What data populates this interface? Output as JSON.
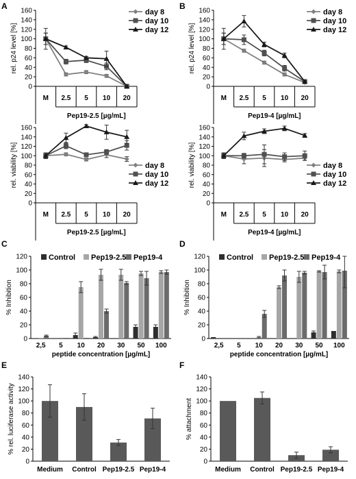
{
  "chart_data": [
    {
      "panel": "A",
      "type": "line",
      "ylabel": "rel. p24 level [%]",
      "ylim": [
        0,
        160
      ],
      "yticks": [
        0,
        20,
        40,
        60,
        80,
        100,
        120,
        140,
        160
      ],
      "categories": [
        "M",
        "2.5",
        "5",
        "10",
        "20"
      ],
      "xlabel": "Pep19-2.5 [µg/mL]",
      "series": [
        {
          "name": "day 8",
          "values": [
            100,
            25,
            30,
            22,
            0
          ],
          "errors": [
            12,
            3,
            3,
            3,
            0
          ],
          "marker": "diamond",
          "color": "#808080"
        },
        {
          "name": "day 10",
          "values": [
            100,
            52,
            55,
            42,
            0
          ],
          "errors": [
            12,
            5,
            5,
            7,
            0
          ],
          "marker": "square",
          "color": "#505050"
        },
        {
          "name": "day 12",
          "values": [
            100,
            82,
            60,
            58,
            0
          ],
          "errors": [
            22,
            3,
            3,
            16,
            0
          ],
          "marker": "triangle",
          "color": "#1a1a1a"
        }
      ],
      "legend": "top-right"
    },
    {
      "panel": "B",
      "type": "line",
      "ylabel": "rel. p24 level [%]",
      "ylim": [
        0,
        160
      ],
      "yticks": [
        0,
        20,
        40,
        60,
        80,
        100,
        120,
        140,
        160
      ],
      "categories": [
        "M",
        "2.5",
        "5",
        "10",
        "20"
      ],
      "xlabel": "Pep19-4 [µg/mL]",
      "series": [
        {
          "name": "day 8",
          "values": [
            100,
            75,
            50,
            25,
            8
          ],
          "errors": [
            12,
            3,
            3,
            3,
            2
          ],
          "marker": "diamond",
          "color": "#808080"
        },
        {
          "name": "day 10",
          "values": [
            100,
            98,
            70,
            38,
            10
          ],
          "errors": [
            12,
            10,
            6,
            6,
            2
          ],
          "marker": "square",
          "color": "#505050"
        },
        {
          "name": "day 12",
          "values": [
            100,
            137,
            88,
            65,
            10
          ],
          "errors": [
            22,
            12,
            5,
            5,
            2
          ],
          "marker": "triangle",
          "color": "#1a1a1a"
        }
      ],
      "legend": "top-right"
    },
    {
      "panel": "A2",
      "type": "line",
      "ylabel": "rel. viability [%]",
      "ylim": [
        0,
        160
      ],
      "yticks": [
        0,
        20,
        40,
        60,
        80,
        100,
        120,
        140,
        160
      ],
      "categories": [
        "M",
        "2.5",
        "5",
        "10",
        "20"
      ],
      "xlabel": "Pep19-2.5 [µg/mL]",
      "series": [
        {
          "name": "day 8",
          "values": [
            100,
            103,
            92,
            102,
            93
          ],
          "errors": [
            6,
            3,
            3,
            6,
            5
          ],
          "marker": "diamond",
          "color": "#808080"
        },
        {
          "name": "day 10",
          "values": [
            100,
            121,
            102,
            108,
            122
          ],
          "errors": [
            6,
            6,
            3,
            5,
            10
          ],
          "marker": "square",
          "color": "#505050"
        },
        {
          "name": "day 12",
          "values": [
            100,
            138,
            163,
            150,
            140
          ],
          "errors": [
            6,
            10,
            3,
            15,
            14
          ],
          "marker": "triangle",
          "color": "#1a1a1a"
        }
      ],
      "legend": "bottom-right"
    },
    {
      "panel": "B2",
      "type": "line",
      "ylabel": "rel. viability [%]",
      "ylim": [
        0,
        160
      ],
      "yticks": [
        0,
        20,
        40,
        60,
        80,
        100,
        120,
        140,
        160
      ],
      "categories": [
        "M",
        "2.5",
        "5",
        "10",
        "20"
      ],
      "xlabel": "Pep19-4 [µg/mL]",
      "series": [
        {
          "name": "day 8",
          "values": [
            100,
            93,
            95,
            92,
            95
          ],
          "errors": [
            6,
            10,
            18,
            5,
            5
          ],
          "marker": "diamond",
          "color": "#808080"
        },
        {
          "name": "day 10",
          "values": [
            100,
            100,
            103,
            98,
            100
          ],
          "errors": [
            6,
            5,
            20,
            8,
            10
          ],
          "marker": "square",
          "color": "#505050"
        },
        {
          "name": "day 12",
          "values": [
            100,
            142,
            152,
            158,
            143
          ],
          "errors": [
            6,
            8,
            5,
            5,
            4
          ],
          "marker": "triangle",
          "color": "#1a1a1a"
        }
      ],
      "legend": "bottom-right"
    },
    {
      "panel": "C",
      "type": "bar",
      "ylabel": "% Inhibition",
      "ylim": [
        0,
        120
      ],
      "yticks": [
        0,
        20,
        40,
        60,
        80,
        100,
        120
      ],
      "categories": [
        "2,5",
        "5",
        "10",
        "20",
        "30",
        "50",
        "100"
      ],
      "xlabel": "peptide concentration [µg/mL]",
      "series": [
        {
          "name": "Control",
          "values": [
            0,
            0,
            5,
            2,
            0,
            17,
            17
          ],
          "errors": [
            0,
            0,
            3,
            1,
            0,
            3,
            3
          ],
          "color": "#2e2e2e"
        },
        {
          "name": "Pep19-2.5",
          "values": [
            1,
            0,
            75,
            93,
            93,
            95,
            97
          ],
          "errors": [
            0,
            0,
            8,
            8,
            8,
            3,
            2
          ],
          "color": "#a6a6a6"
        },
        {
          "name": "Pep19-4",
          "values": [
            4,
            1,
            1,
            40,
            81,
            88,
            97
          ],
          "errors": [
            1,
            0,
            0,
            3,
            2,
            10,
            3
          ],
          "color": "#6b6b6b"
        }
      ],
      "legend": "top"
    },
    {
      "panel": "D",
      "type": "bar",
      "ylabel": "% Inhibition",
      "ylim": [
        0,
        120
      ],
      "yticks": [
        0,
        20,
        40,
        60,
        80,
        100,
        120
      ],
      "categories": [
        "2,5",
        "5",
        "10",
        "20",
        "30",
        "50",
        "100"
      ],
      "xlabel": "peptide concentration [µg/mL]",
      "series": [
        {
          "name": "Control",
          "values": [
            2,
            0,
            0,
            0,
            0,
            9,
            11
          ],
          "errors": [
            0,
            0,
            0,
            0,
            0,
            2,
            0
          ],
          "color": "#2e2e2e"
        },
        {
          "name": "Pep19-2.5",
          "values": [
            0,
            0,
            2,
            75,
            90,
            98,
            98
          ],
          "errors": [
            0,
            0,
            1,
            2,
            8,
            1,
            2
          ],
          "color": "#a6a6a6"
        },
        {
          "name": "Pep19-4",
          "values": [
            0,
            0,
            36,
            92,
            96,
            97,
            99
          ],
          "errors": [
            0,
            0,
            5,
            8,
            2,
            10,
            25
          ],
          "color": "#6b6b6b"
        }
      ],
      "legend": "top"
    },
    {
      "panel": "E",
      "type": "bar",
      "ylabel": "% rel. luciferase activity",
      "ylim": [
        0,
        140
      ],
      "yticks": [
        0,
        20,
        40,
        60,
        80,
        100,
        120,
        140
      ],
      "categories": [
        "Medium",
        "Control",
        "Pep19-2.5",
        "Pep19-4"
      ],
      "series": [
        {
          "values": [
            100,
            90,
            31,
            71
          ],
          "errors": [
            27,
            22,
            5,
            17
          ],
          "color": "#595959"
        }
      ]
    },
    {
      "panel": "F",
      "type": "bar",
      "ylabel": "% attachment",
      "ylim": [
        0,
        140
      ],
      "yticks": [
        0,
        20,
        40,
        60,
        80,
        100,
        120,
        140
      ],
      "categories": [
        "Medium",
        "Control",
        "Pep19-2.5",
        "Pep19-4"
      ],
      "series": [
        {
          "values": [
            100,
            105,
            10,
            19
          ],
          "errors": [
            0,
            10,
            5,
            5
          ],
          "color": "#595959"
        }
      ]
    }
  ]
}
